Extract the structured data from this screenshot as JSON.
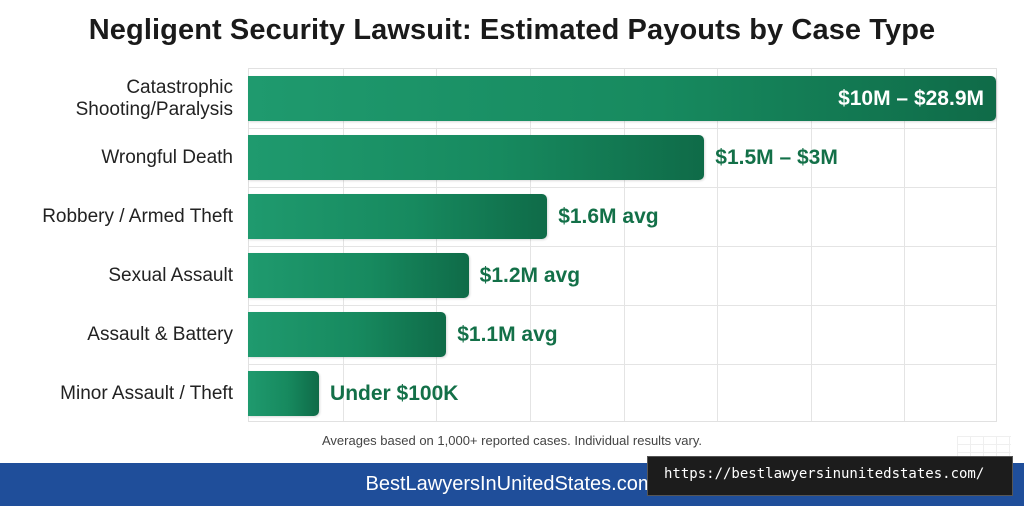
{
  "chart_data": {
    "type": "bar",
    "orientation": "horizontal",
    "title": "Negligent Security Lawsuit: Estimated Payouts by Case Type",
    "xlabel": "",
    "ylabel": "",
    "grid": true,
    "xlim": [
      0,
      10
    ],
    "categories": [
      "Catastrophic Shooting/Paralysis",
      "Wrongful Death",
      "Robbery / Armed Theft",
      "Sexual Assault",
      "Assault & Battery",
      "Minor Assault / Theft"
    ],
    "values": [
      10,
      6.1,
      4.0,
      2.95,
      2.65,
      0.95
    ],
    "data_labels": [
      "$10M – $28.9M",
      "$1.5M – $3M",
      "$1.6M avg",
      "$1.2M avg",
      "$1.1M avg",
      "Under $100K"
    ],
    "bar_color": "#178a5f"
  },
  "footnote": "Averages based on 1,000+ reported cases. Individual results vary.",
  "footer": {
    "brand": "BestLawyersInUnitedStates.com",
    "url": "https://bestlawyersinunitedstates.com/",
    "band_color": "#1f4e9a"
  }
}
